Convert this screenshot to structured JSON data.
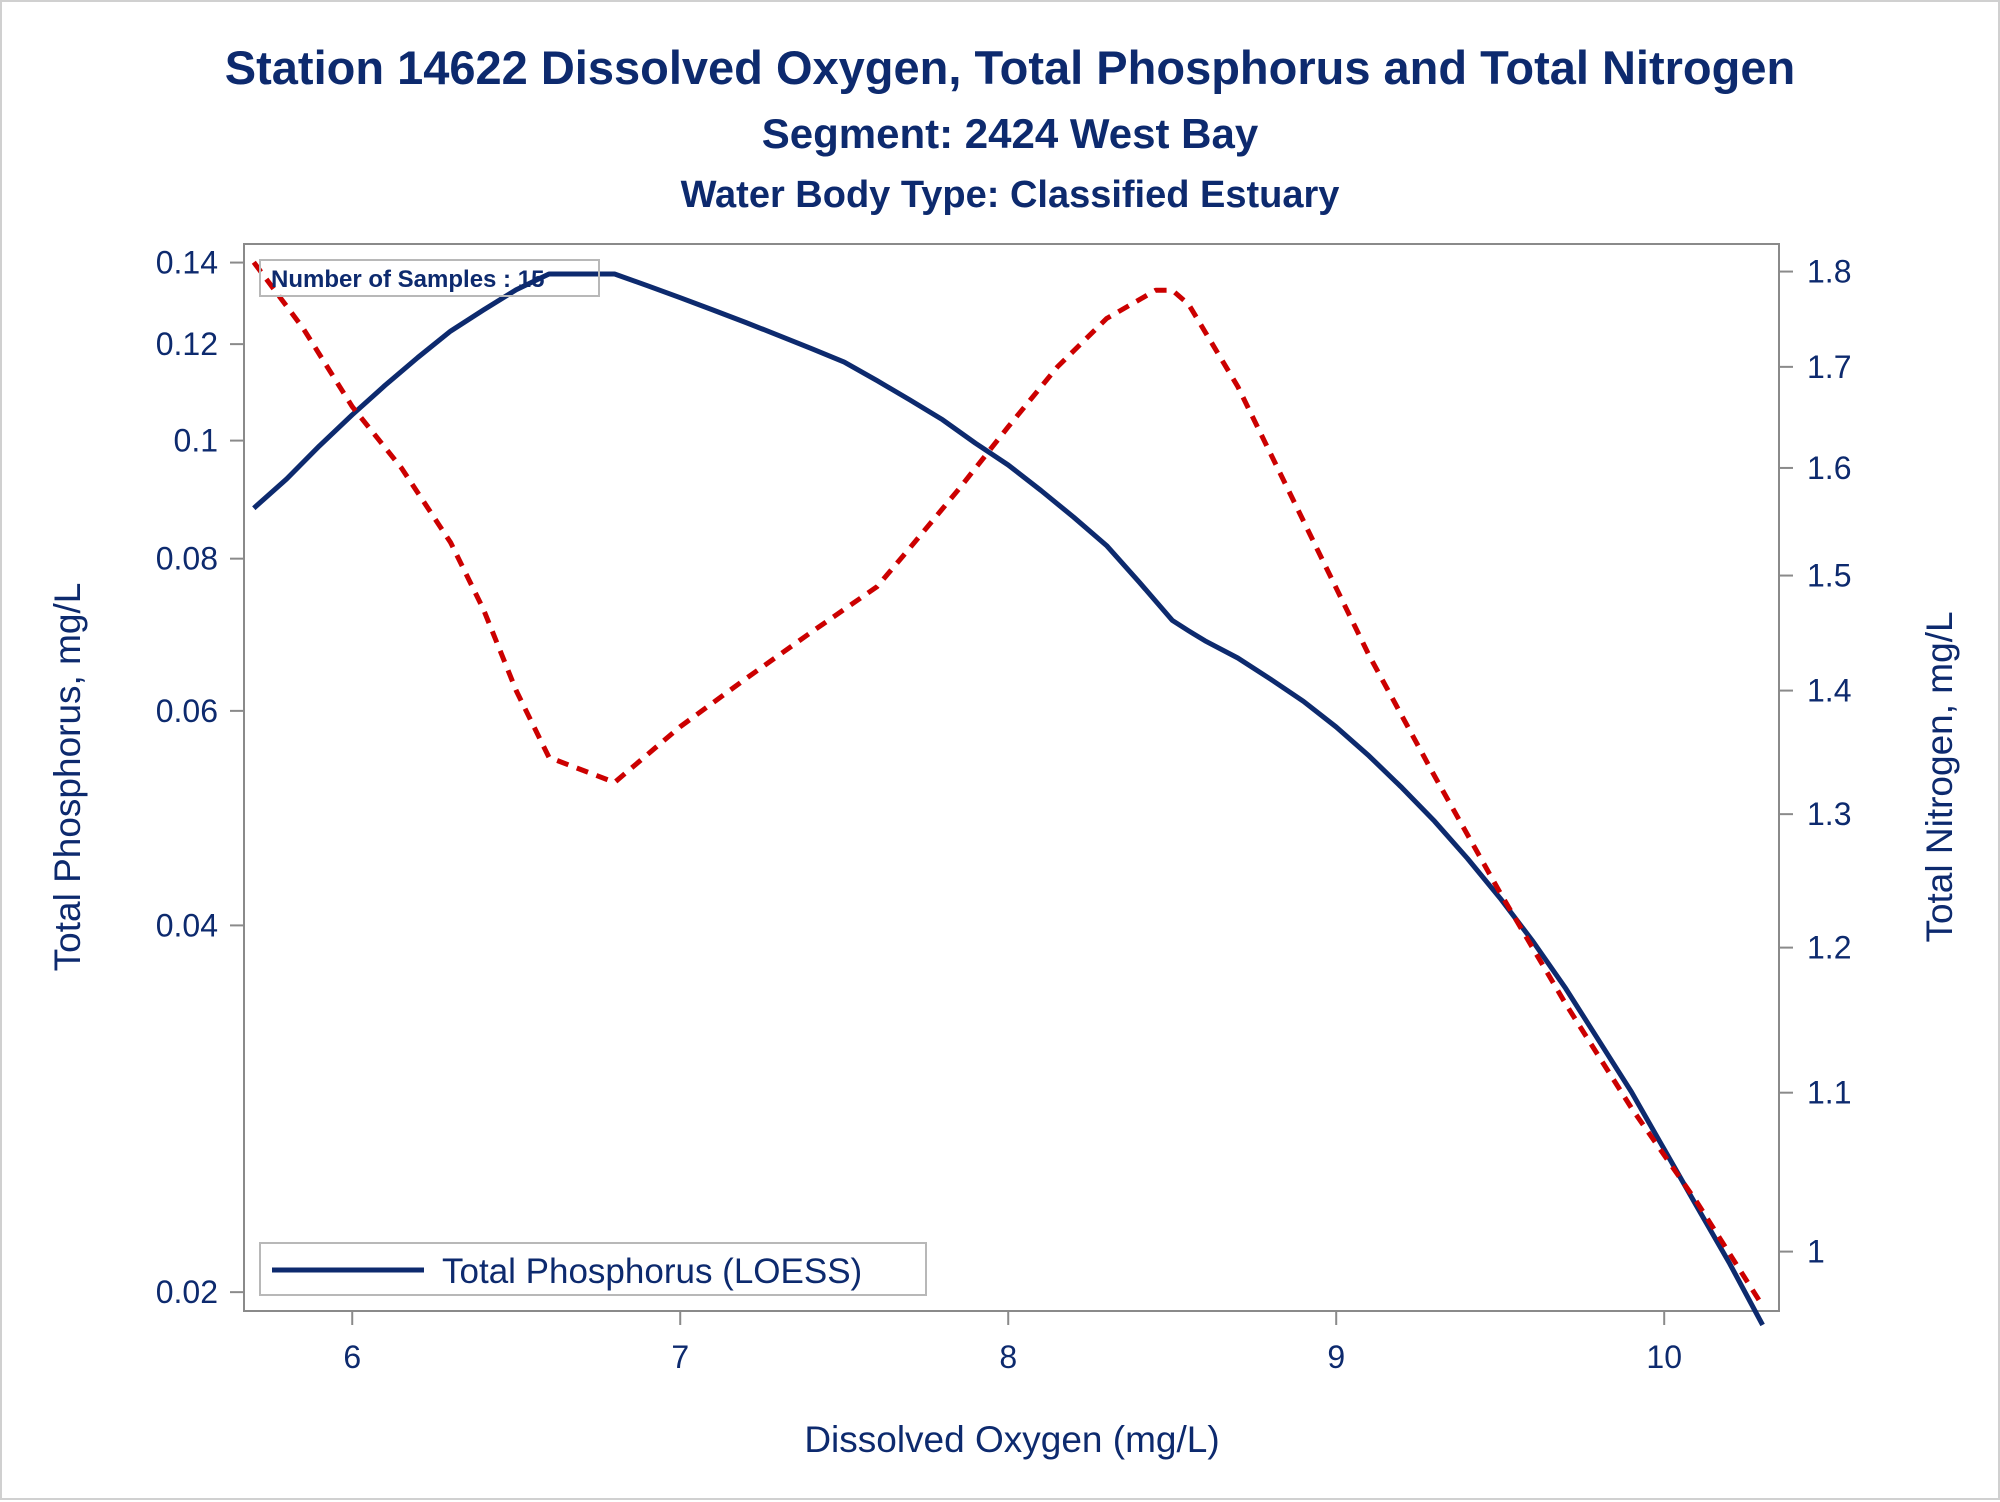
{
  "chart_data": {
    "type": "line",
    "title": "Station 14622  Dissolved Oxygen, Total Phosphorus and Total Nitrogen",
    "subtitle": "Segment: 2424  West Bay",
    "subtitle2": "Water Body Type: Classified Estuary",
    "xlabel": "Dissolved Oxygen (mg/L)",
    "ylabel_left": "Total Phosphorus, mg/L",
    "ylabel_right": "Total Nitrogen, mg/L",
    "x_ticks": [
      "6",
      "7",
      "8",
      "9",
      "10"
    ],
    "x_tick_values": [
      6,
      7,
      8,
      9,
      10
    ],
    "xlim": [
      5.67,
      10.35
    ],
    "y_left_scale": "log",
    "y_left_ticks": [
      "0.02",
      "0.04",
      "0.06",
      "0.08",
      "0.1",
      "0.12",
      "0.14"
    ],
    "y_left_tick_values": [
      0.02,
      0.04,
      0.06,
      0.08,
      0.1,
      0.12,
      0.14
    ],
    "y_left_lim": [
      0.0193,
      0.145
    ],
    "y_right_scale": "log",
    "y_right_ticks": [
      "1",
      "1.1",
      "1.2",
      "1.3",
      "1.4",
      "1.5",
      "1.6",
      "1.7",
      "1.8"
    ],
    "y_right_tick_values": [
      1.0,
      1.1,
      1.2,
      1.3,
      1.4,
      1.5,
      1.6,
      1.7,
      1.8
    ],
    "y_right_lim": [
      0.965,
      1.83
    ],
    "annotation": "Number of Samples : 15",
    "legend_position": "bottom-left",
    "grid": false,
    "series": [
      {
        "name": "Total Phosphorus (LOESS)",
        "axis": "left",
        "color": "#0d2a6e",
        "style": "solid",
        "x": [
          5.7,
          5.8,
          5.9,
          6.0,
          6.1,
          6.2,
          6.3,
          6.4,
          6.5,
          6.6,
          6.65,
          6.7,
          6.8,
          6.9,
          7.0,
          7.1,
          7.2,
          7.3,
          7.4,
          7.5,
          7.6,
          7.7,
          7.8,
          7.9,
          8.0,
          8.1,
          8.2,
          8.3,
          8.4,
          8.5,
          8.55,
          8.6,
          8.7,
          8.8,
          8.9,
          9.0,
          9.1,
          9.2,
          9.3,
          9.4,
          9.5,
          9.6,
          9.7,
          9.8,
          9.9,
          10.0,
          10.1,
          10.2,
          10.3
        ],
        "values": [
          0.088,
          0.093,
          0.099,
          0.105,
          0.111,
          0.117,
          0.123,
          0.128,
          0.133,
          0.137,
          0.137,
          0.137,
          0.137,
          0.134,
          0.131,
          0.128,
          0.125,
          0.122,
          0.119,
          0.116,
          0.112,
          0.108,
          0.104,
          0.0995,
          0.0955,
          0.091,
          0.0865,
          0.082,
          0.0765,
          0.0712,
          0.0698,
          0.0685,
          0.0663,
          0.0637,
          0.0611,
          0.0582,
          0.0551,
          0.0519,
          0.0487,
          0.0454,
          0.0421,
          0.0388,
          0.0355,
          0.0322,
          0.0292,
          0.0262,
          0.0235,
          0.0211,
          0.0188
        ]
      },
      {
        "name": "",
        "axis": "right",
        "color": "#cc0000",
        "style": "dashed",
        "x": [
          5.7,
          5.85,
          6.0,
          6.15,
          6.3,
          6.4,
          6.5,
          6.6,
          6.8,
          7.0,
          7.2,
          7.4,
          7.6,
          7.7,
          7.85,
          8.0,
          8.15,
          8.3,
          8.45,
          8.5,
          8.55,
          8.7,
          8.9,
          9.1,
          9.3,
          9.5,
          9.7,
          9.9,
          10.1,
          10.3
        ],
        "values": [
          1.81,
          1.74,
          1.66,
          1.6,
          1.53,
          1.47,
          1.4,
          1.345,
          1.325,
          1.37,
          1.41,
          1.45,
          1.49,
          1.525,
          1.58,
          1.64,
          1.7,
          1.75,
          1.78,
          1.78,
          1.765,
          1.68,
          1.55,
          1.43,
          1.33,
          1.24,
          1.16,
          1.09,
          1.03,
          0.968
        ]
      }
    ]
  }
}
